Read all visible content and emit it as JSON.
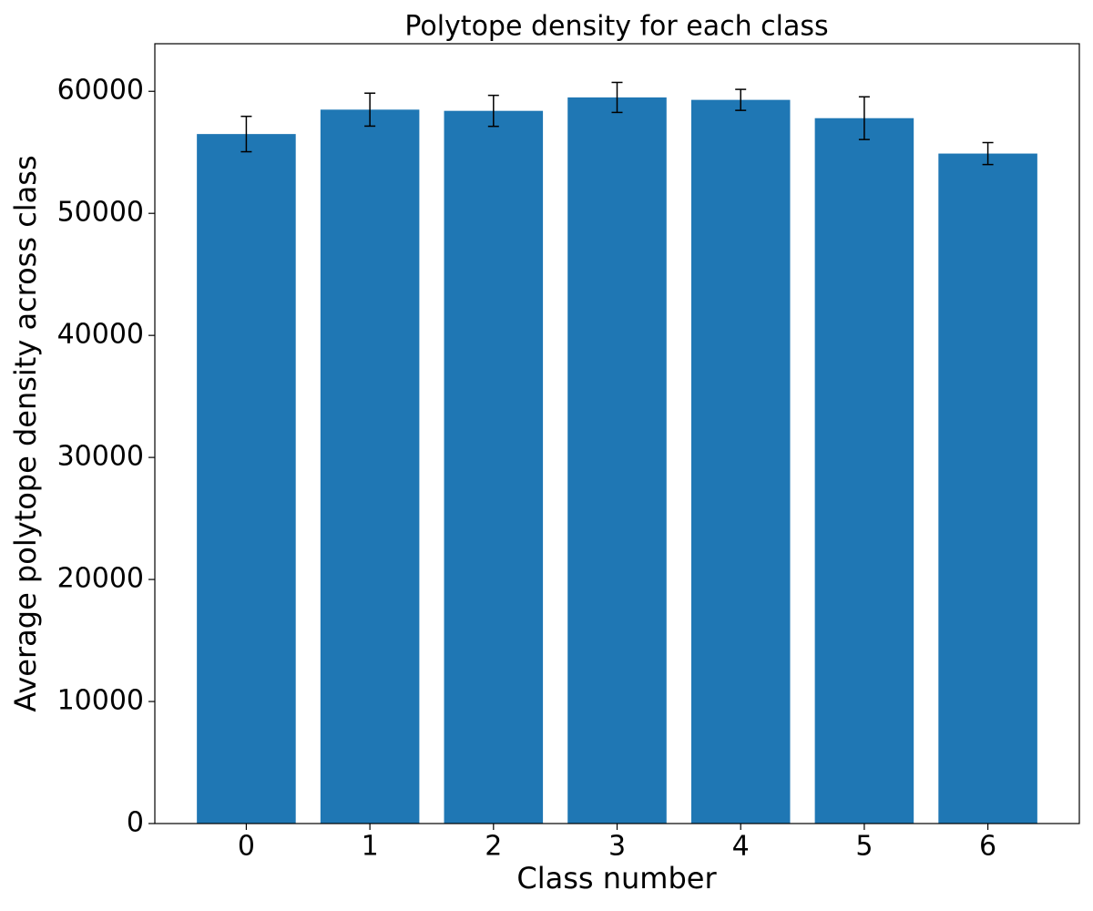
{
  "chart_data": {
    "type": "bar",
    "title": "Polytope density for each class",
    "x_label": "Class number",
    "y_label": "Average polytope density across class",
    "categories": [
      "0",
      "1",
      "2",
      "3",
      "4",
      "5",
      "6"
    ],
    "values": [
      56500,
      58500,
      58400,
      59500,
      59300,
      57800,
      54900
    ],
    "errors": [
      1450,
      1350,
      1270,
      1230,
      860,
      1750,
      900
    ],
    "color": "#1f77b4",
    "error_color": "#000000",
    "ylim": [
      0,
      63900
    ],
    "yticks": [
      0,
      10000,
      20000,
      30000,
      40000,
      50000,
      60000
    ]
  }
}
